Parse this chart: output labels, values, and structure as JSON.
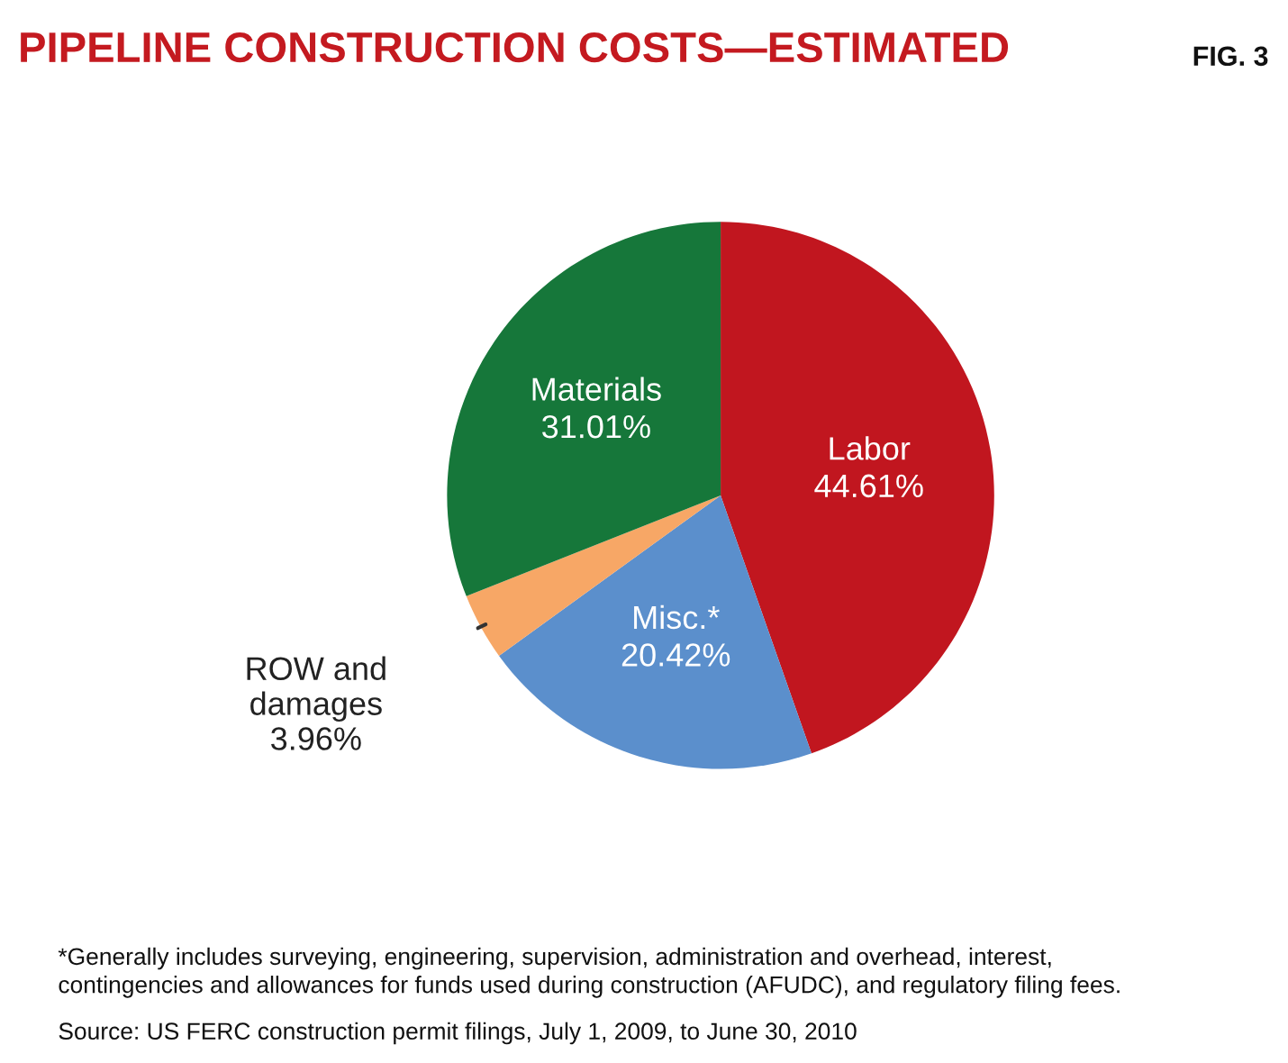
{
  "chart_data": {
    "type": "pie",
    "title": "PIPELINE CONSTRUCTION COSTS—ESTIMATED",
    "categories": [
      "Labor",
      "Misc.*",
      "ROW and\ndamages",
      "Materials"
    ],
    "values": [
      44.61,
      20.42,
      3.96,
      31.01
    ],
    "value_labels": [
      "44.61%",
      "20.42%",
      "3.96%",
      "31.01%"
    ],
    "colors": [
      "#c1161f",
      "#5b8fcc",
      "#f7a766",
      "#16773a"
    ],
    "annotations": [
      "FIG. 3",
      "*Generally includes surveying, engineering, supervision, administration and overhead, interest,\ncontingencies and allowances for funds used during construction (AFUDC), and regulatory filing fees.",
      "Source: US FERC construction permit filings, July 1, 2009, to June 30, 2010"
    ],
    "legend": false
  }
}
